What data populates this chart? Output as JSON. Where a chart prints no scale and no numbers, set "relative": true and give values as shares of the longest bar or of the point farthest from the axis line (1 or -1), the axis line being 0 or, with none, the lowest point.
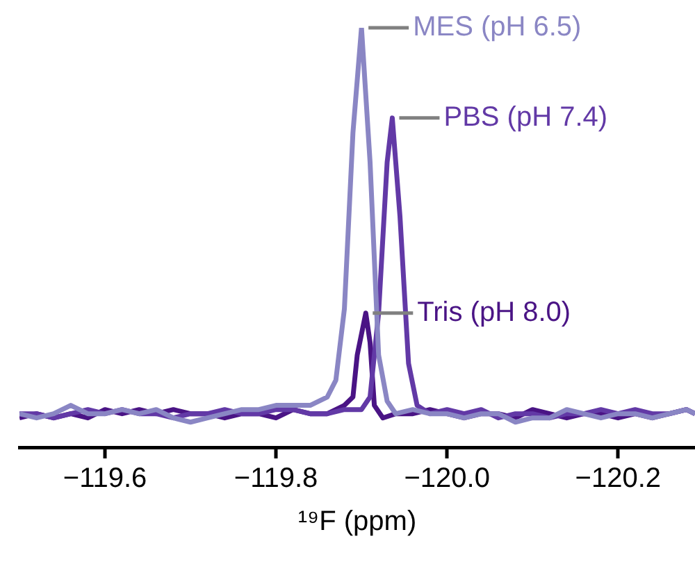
{
  "chart_data": {
    "type": "line",
    "relative": true,
    "xlabel": "¹⁹F (ppm)",
    "xlim": [
      -119.5,
      -120.29
    ],
    "xticks": [
      {
        "value": -119.6,
        "label": "−119.6"
      },
      {
        "value": -119.8,
        "label": "−119.8"
      },
      {
        "value": -120.0,
        "label": "−120.0"
      },
      {
        "value": -120.2,
        "label": "−120.2"
      }
    ],
    "grid": false,
    "legend": false,
    "marker": "none",
    "line_style": "solid",
    "series": [
      {
        "name": "MES (pH 6.5)",
        "color": "#8a86c4",
        "x": [
          -119.5,
          -119.52,
          -119.54,
          -119.56,
          -119.58,
          -119.6,
          -119.62,
          -119.64,
          -119.66,
          -119.68,
          -119.7,
          -119.72,
          -119.74,
          -119.76,
          -119.78,
          -119.8,
          -119.82,
          -119.84,
          -119.86,
          -119.87,
          -119.88,
          -119.89,
          -119.9,
          -119.91,
          -119.92,
          -119.93,
          -119.94,
          -119.96,
          -119.98,
          -120.0,
          -120.02,
          -120.04,
          -120.06,
          -120.08,
          -120.1,
          -120.12,
          -120.14,
          -120.16,
          -120.18,
          -120.2,
          -120.22,
          -120.24,
          -120.26,
          -120.28,
          -120.29
        ],
        "values": [
          0.08,
          0.07,
          0.08,
          0.1,
          0.08,
          0.08,
          0.09,
          0.08,
          0.09,
          0.07,
          0.06,
          0.07,
          0.08,
          0.09,
          0.09,
          0.1,
          0.1,
          0.1,
          0.12,
          0.16,
          0.33,
          0.75,
          1.0,
          0.68,
          0.22,
          0.11,
          0.08,
          0.09,
          0.08,
          0.08,
          0.07,
          0.08,
          0.08,
          0.06,
          0.07,
          0.07,
          0.09,
          0.08,
          0.07,
          0.08,
          0.08,
          0.07,
          0.08,
          0.09,
          0.08
        ]
      },
      {
        "name": "PBS (pH 7.4)",
        "color": "#6239a6",
        "x": [
          -119.5,
          -119.52,
          -119.54,
          -119.56,
          -119.58,
          -119.6,
          -119.62,
          -119.64,
          -119.66,
          -119.68,
          -119.7,
          -119.72,
          -119.74,
          -119.76,
          -119.78,
          -119.8,
          -119.82,
          -119.84,
          -119.86,
          -119.88,
          -119.9,
          -119.91,
          -119.92,
          -119.93,
          -119.936,
          -119.945,
          -119.955,
          -119.965,
          -119.98,
          -120.0,
          -120.02,
          -120.04,
          -120.06,
          -120.08,
          -120.1,
          -120.12,
          -120.14,
          -120.16,
          -120.18,
          -120.2,
          -120.22,
          -120.24,
          -120.26,
          -120.28,
          -120.29
        ],
        "values": [
          0.08,
          0.08,
          0.07,
          0.08,
          0.09,
          0.08,
          0.09,
          0.08,
          0.08,
          0.07,
          0.08,
          0.08,
          0.09,
          0.08,
          0.08,
          0.09,
          0.09,
          0.08,
          0.08,
          0.09,
          0.09,
          0.12,
          0.32,
          0.68,
          0.785,
          0.55,
          0.2,
          0.1,
          0.08,
          0.09,
          0.08,
          0.09,
          0.07,
          0.08,
          0.08,
          0.07,
          0.08,
          0.08,
          0.09,
          0.08,
          0.09,
          0.08,
          0.08,
          0.09,
          0.08
        ]
      },
      {
        "name": "Tris (pH 8.0)",
        "color": "#4a1485",
        "x": [
          -119.5,
          -119.52,
          -119.54,
          -119.56,
          -119.58,
          -119.6,
          -119.62,
          -119.64,
          -119.66,
          -119.68,
          -119.7,
          -119.72,
          -119.74,
          -119.76,
          -119.78,
          -119.8,
          -119.82,
          -119.84,
          -119.86,
          -119.88,
          -119.89,
          -119.895,
          -119.905,
          -119.91,
          -119.915,
          -119.925,
          -119.94,
          -119.96,
          -119.98,
          -120.0,
          -120.02,
          -120.04,
          -120.06,
          -120.08,
          -120.1,
          -120.12,
          -120.14,
          -120.16,
          -120.18,
          -120.2,
          -120.22,
          -120.24,
          -120.26,
          -120.28,
          -120.29
        ],
        "values": [
          0.07,
          0.08,
          0.07,
          0.08,
          0.07,
          0.09,
          0.08,
          0.09,
          0.08,
          0.09,
          0.08,
          0.08,
          0.07,
          0.08,
          0.08,
          0.07,
          0.09,
          0.08,
          0.08,
          0.1,
          0.12,
          0.22,
          0.32,
          0.25,
          0.1,
          0.07,
          0.08,
          0.08,
          0.09,
          0.08,
          0.07,
          0.08,
          0.08,
          0.07,
          0.09,
          0.08,
          0.07,
          0.08,
          0.08,
          0.07,
          0.08,
          0.07,
          0.08,
          0.09,
          0.08
        ]
      }
    ]
  }
}
